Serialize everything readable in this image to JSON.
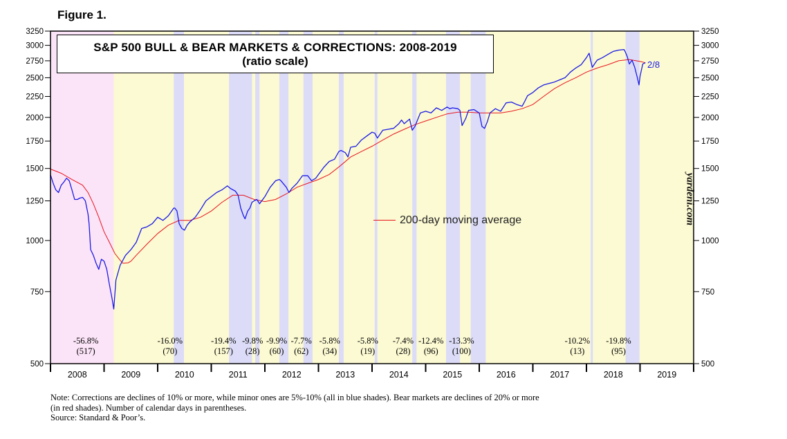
{
  "figure_label": "Figure 1.",
  "chart_data": {
    "type": "line",
    "title": "S&P 500 BULL & BEAR MARKETS & CORRECTIONS: 2008-2019",
    "subtitle": "(ratio scale)",
    "scale": "log",
    "ylim": [
      500,
      3250
    ],
    "yticks": [
      500,
      750,
      1000,
      1250,
      1500,
      1750,
      2000,
      2250,
      2500,
      2750,
      3000,
      3250
    ],
    "xlim": [
      2008.0,
      2020.0
    ],
    "x_tick_labels": [
      "2008",
      "2009",
      "2010",
      "2011",
      "2012",
      "2013",
      "2014",
      "2015",
      "2016",
      "2017",
      "2018",
      "2019"
    ],
    "colors": {
      "price": "#1a1ae6",
      "ma": "#e8141e",
      "bull": "#fcfad2",
      "bear": "#fce4f8",
      "correction": "#dcdcf8"
    },
    "series": [
      {
        "name": "S&P 500",
        "x": [
          2008.0,
          2008.05,
          2008.1,
          2008.15,
          2008.2,
          2008.25,
          2008.3,
          2008.35,
          2008.4,
          2008.45,
          2008.5,
          2008.55,
          2008.6,
          2008.65,
          2008.7,
          2008.72,
          2008.75,
          2008.8,
          2008.85,
          2008.9,
          2008.95,
          2009.0,
          2009.05,
          2009.1,
          2009.15,
          2009.18,
          2009.22,
          2009.3,
          2009.4,
          2009.5,
          2009.6,
          2009.7,
          2009.8,
          2009.9,
          2010.0,
          2010.1,
          2010.2,
          2010.3,
          2010.32,
          2010.36,
          2010.4,
          2010.45,
          2010.5,
          2010.55,
          2010.6,
          2010.7,
          2010.8,
          2010.9,
          2011.0,
          2011.1,
          2011.2,
          2011.3,
          2011.36,
          2011.45,
          2011.5,
          2011.55,
          2011.6,
          2011.63,
          2011.68,
          2011.72,
          2011.76,
          2011.8,
          2011.85,
          2011.9,
          2012.0,
          2012.1,
          2012.2,
          2012.27,
          2012.3,
          2012.4,
          2012.45,
          2012.5,
          2012.6,
          2012.7,
          2012.8,
          2012.87,
          2012.95,
          2013.0,
          2013.1,
          2013.2,
          2013.3,
          2013.38,
          2013.42,
          2013.5,
          2013.55,
          2013.6,
          2013.7,
          2013.8,
          2013.9,
          2014.0,
          2014.05,
          2014.1,
          2014.2,
          2014.3,
          2014.4,
          2014.5,
          2014.55,
          2014.6,
          2014.7,
          2014.75,
          2014.8,
          2014.9,
          2015.0,
          2015.1,
          2015.2,
          2015.3,
          2015.4,
          2015.45,
          2015.5,
          2015.6,
          2015.64,
          2015.68,
          2015.75,
          2015.8,
          2015.9,
          2016.0,
          2016.05,
          2016.1,
          2016.15,
          2016.2,
          2016.3,
          2016.4,
          2016.5,
          2016.6,
          2016.7,
          2016.8,
          2016.85,
          2016.9,
          2017.0,
          2017.1,
          2017.2,
          2017.3,
          2017.4,
          2017.5,
          2017.6,
          2017.7,
          2017.8,
          2017.9,
          2018.0,
          2018.05,
          2018.08,
          2018.11,
          2018.15,
          2018.2,
          2018.3,
          2018.4,
          2018.5,
          2018.6,
          2018.7,
          2018.72,
          2018.76,
          2018.8,
          2018.85,
          2018.9,
          2018.95,
          2018.98,
          2019.0,
          2019.05,
          2019.1
        ],
        "y": [
          1447,
          1380,
          1330,
          1310,
          1365,
          1390,
          1420,
          1400,
          1330,
          1260,
          1260,
          1270,
          1275,
          1250,
          1160,
          1100,
          950,
          920,
          880,
          850,
          900,
          890,
          850,
          780,
          720,
          680,
          800,
          870,
          920,
          950,
          990,
          1070,
          1080,
          1100,
          1140,
          1120,
          1150,
          1200,
          1200,
          1180,
          1100,
          1070,
          1060,
          1090,
          1110,
          1140,
          1190,
          1250,
          1280,
          1310,
          1330,
          1360,
          1340,
          1320,
          1290,
          1200,
          1150,
          1130,
          1180,
          1200,
          1240,
          1250,
          1260,
          1230,
          1280,
          1350,
          1400,
          1410,
          1400,
          1350,
          1310,
          1340,
          1380,
          1440,
          1440,
          1400,
          1420,
          1450,
          1510,
          1560,
          1580,
          1650,
          1660,
          1640,
          1600,
          1690,
          1700,
          1760,
          1800,
          1840,
          1830,
          1780,
          1860,
          1870,
          1880,
          1930,
          1970,
          1930,
          1980,
          1860,
          1900,
          2050,
          2070,
          2050,
          2110,
          2080,
          2120,
          2100,
          2110,
          2100,
          2080,
          1910,
          1990,
          2080,
          2090,
          2050,
          1900,
          1880,
          1950,
          2050,
          2100,
          2070,
          2170,
          2180,
          2150,
          2130,
          2190,
          2260,
          2300,
          2360,
          2400,
          2420,
          2440,
          2470,
          2500,
          2580,
          2640,
          2690,
          2800,
          2870,
          2750,
          2650,
          2700,
          2760,
          2800,
          2850,
          2900,
          2920,
          2930,
          2900,
          2820,
          2700,
          2760,
          2650,
          2500,
          2400,
          2520,
          2700,
          2720
        ]
      },
      {
        "name": "200-day moving average",
        "x": [
          2008.0,
          2008.2,
          2008.4,
          2008.6,
          2008.7,
          2008.8,
          2008.9,
          2009.0,
          2009.1,
          2009.2,
          2009.3,
          2009.35,
          2009.45,
          2009.5,
          2009.6,
          2009.8,
          2010.0,
          2010.2,
          2010.4,
          2010.6,
          2010.8,
          2011.0,
          2011.2,
          2011.4,
          2011.6,
          2011.8,
          2012.0,
          2012.2,
          2012.4,
          2012.6,
          2012.8,
          2013.0,
          2013.2,
          2013.4,
          2013.6,
          2013.8,
          2014.0,
          2014.2,
          2014.4,
          2014.6,
          2014.8,
          2015.0,
          2015.2,
          2015.4,
          2015.6,
          2015.8,
          2016.0,
          2016.2,
          2016.4,
          2016.6,
          2016.8,
          2017.0,
          2017.2,
          2017.4,
          2017.6,
          2017.8,
          2018.0,
          2018.2,
          2018.4,
          2018.6,
          2018.8,
          2019.0,
          2019.1
        ],
        "y": [
          1495,
          1460,
          1410,
          1365,
          1310,
          1230,
          1140,
          1050,
          990,
          930,
          895,
          880,
          882,
          890,
          920,
          980,
          1040,
          1090,
          1120,
          1120,
          1140,
          1180,
          1240,
          1290,
          1290,
          1260,
          1245,
          1260,
          1300,
          1350,
          1380,
          1410,
          1450,
          1520,
          1600,
          1650,
          1700,
          1760,
          1820,
          1870,
          1920,
          1960,
          2000,
          2040,
          2060,
          2060,
          2050,
          2050,
          2050,
          2070,
          2100,
          2150,
          2250,
          2350,
          2430,
          2500,
          2580,
          2640,
          2690,
          2750,
          2770,
          2740,
          2720
        ]
      }
    ],
    "shaded_regions": [
      {
        "kind": "bear",
        "start": 2008.0,
        "end": 2009.18
      },
      {
        "kind": "correction",
        "start": 2010.3,
        "end": 2010.49
      },
      {
        "kind": "correction",
        "start": 2011.33,
        "end": 2011.76
      },
      {
        "kind": "correction",
        "start": 2011.82,
        "end": 2011.9
      },
      {
        "kind": "correction",
        "start": 2012.27,
        "end": 2012.44
      },
      {
        "kind": "correction",
        "start": 2012.72,
        "end": 2012.89
      },
      {
        "kind": "correction",
        "start": 2013.38,
        "end": 2013.47
      },
      {
        "kind": "correction",
        "start": 2014.05,
        "end": 2014.1
      },
      {
        "kind": "correction",
        "start": 2014.75,
        "end": 2014.83
      },
      {
        "kind": "correction",
        "start": 2015.38,
        "end": 2015.64
      },
      {
        "kind": "correction",
        "start": 2015.84,
        "end": 2016.12
      },
      {
        "kind": "correction",
        "start": 2018.08,
        "end": 2018.12
      },
      {
        "kind": "correction",
        "start": 2018.73,
        "end": 2018.99
      }
    ],
    "annotations": [
      {
        "x": 2008.66,
        "pct": "-56.8%",
        "days": "(517)"
      },
      {
        "x": 2010.23,
        "pct": "-16.0%",
        "days": "(70)"
      },
      {
        "x": 2011.23,
        "pct": "-19.4%",
        "days": "(157)"
      },
      {
        "x": 2011.77,
        "pct": "-9.8%",
        "days": "(28)"
      },
      {
        "x": 2012.22,
        "pct": "-9.9%",
        "days": "(60)"
      },
      {
        "x": 2012.68,
        "pct": "-7.7%",
        "days": "(62)"
      },
      {
        "x": 2013.21,
        "pct": "-5.8%",
        "days": "(34)"
      },
      {
        "x": 2013.92,
        "pct": "-5.8%",
        "days": "(19)"
      },
      {
        "x": 2014.58,
        "pct": "-7.4%",
        "days": "(28)"
      },
      {
        "x": 2015.1,
        "pct": "-12.4%",
        "days": "(96)"
      },
      {
        "x": 2015.67,
        "pct": "-13.3%",
        "days": "(100)"
      },
      {
        "x": 2017.83,
        "pct": "-10.2%",
        "days": "(13)"
      },
      {
        "x": 2018.6,
        "pct": "-19.8%",
        "days": "(95)"
      }
    ],
    "legend": {
      "label": "200-day moving average",
      "placement": "center-right"
    },
    "end_label": "2/8",
    "grid": false
  },
  "watermark": "yardeni.com",
  "notes": [
    "Note: Corrections are declines of 10% or more, while minor ones are 5%-10% (all in blue shades).  Bear markets are declines of 20% or more",
    "(in red shades). Number of calendar days in parentheses.",
    "Source: Standard & Poor’s."
  ]
}
